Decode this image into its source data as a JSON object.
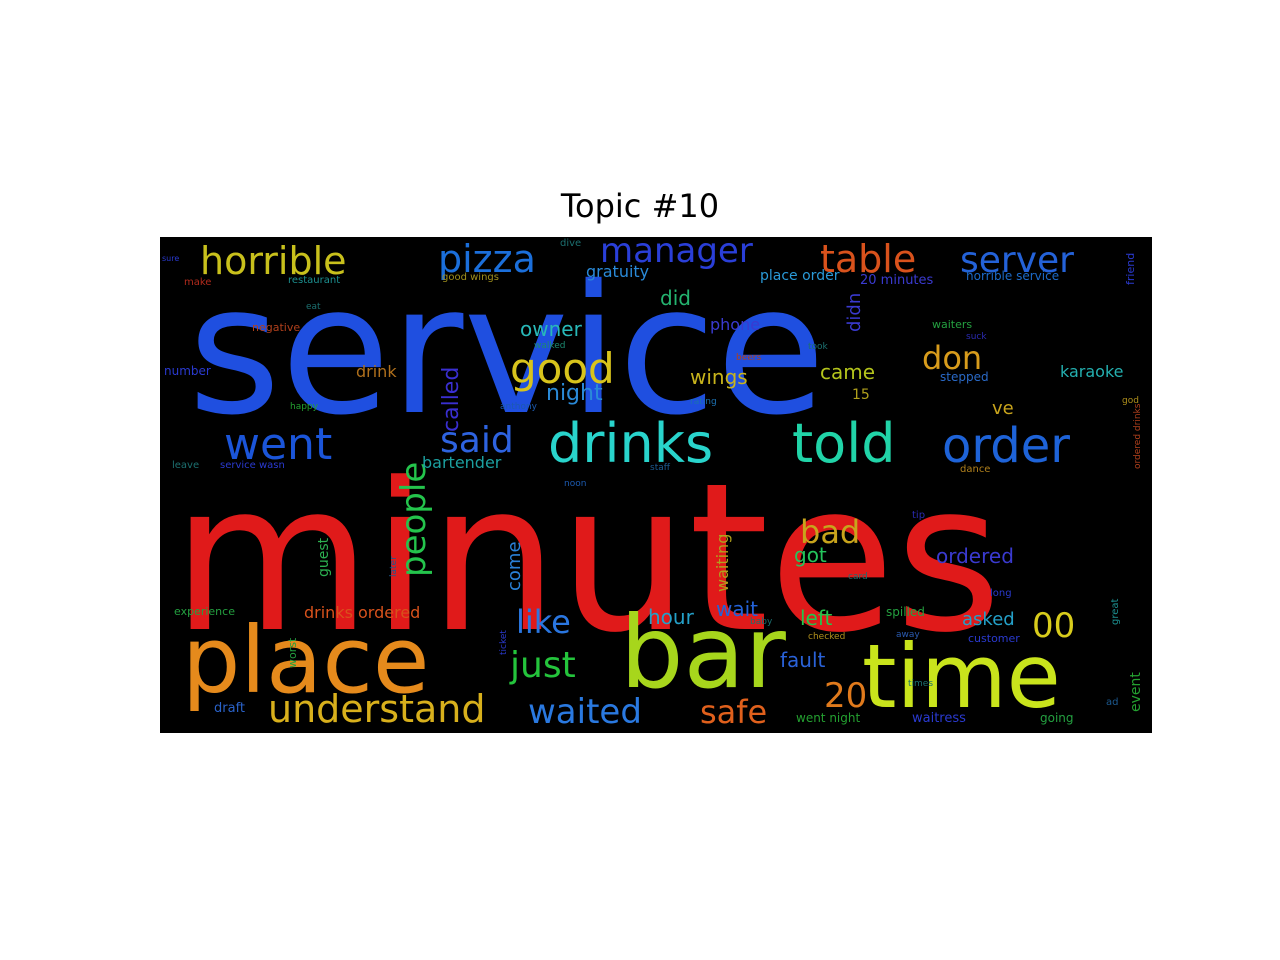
{
  "title": "Topic #10",
  "words": [
    {
      "text": "service",
      "color": "#1f4fe0"
    },
    {
      "text": "minutes",
      "color": "#e01a1a"
    },
    {
      "text": "place",
      "color": "#e58a1c"
    },
    {
      "text": "bar",
      "color": "#a7d61c"
    },
    {
      "text": "time",
      "color": "#c9e41c"
    },
    {
      "text": "drinks",
      "color": "#29d4cc"
    },
    {
      "text": "told",
      "color": "#21d4a8"
    },
    {
      "text": "order",
      "color": "#1e63d8"
    },
    {
      "text": "went",
      "color": "#1b55d9"
    },
    {
      "text": "said",
      "color": "#2e63e0"
    },
    {
      "text": "horrible",
      "color": "#c8c01c"
    },
    {
      "text": "pizza",
      "color": "#1b6fdb"
    },
    {
      "text": "manager",
      "color": "#2a3fd8"
    },
    {
      "text": "table",
      "color": "#d9521c"
    },
    {
      "text": "server",
      "color": "#2462d8"
    },
    {
      "text": "good",
      "color": "#d8c41c"
    },
    {
      "text": "understand",
      "color": "#d8b01c"
    },
    {
      "text": "people",
      "color": "#24c44c"
    },
    {
      "text": "just",
      "color": "#24c43c"
    },
    {
      "text": "like",
      "color": "#2a76e0"
    },
    {
      "text": "waited",
      "color": "#2a79e0"
    },
    {
      "text": "safe",
      "color": "#e0601c"
    },
    {
      "text": "don",
      "color": "#d89c1c"
    },
    {
      "text": "bad",
      "color": "#c8a41c"
    },
    {
      "text": "00",
      "color": "#d8cc1c"
    },
    {
      "text": "20",
      "color": "#e07a1c"
    },
    {
      "text": "called",
      "color": "#3a2fd0"
    },
    {
      "text": "night",
      "color": "#2a8ad8"
    },
    {
      "text": "wings",
      "color": "#c8b41c"
    },
    {
      "text": "owner",
      "color": "#28b8b8"
    },
    {
      "text": "did",
      "color": "#24b470"
    },
    {
      "text": "came",
      "color": "#b4c41c"
    },
    {
      "text": "hour",
      "color": "#24a0c8"
    },
    {
      "text": "wait",
      "color": "#2462d8"
    },
    {
      "text": "left",
      "color": "#24c44c"
    },
    {
      "text": "asked",
      "color": "#24a0c8"
    },
    {
      "text": "fault",
      "color": "#2a62d8"
    },
    {
      "text": "ordered",
      "color": "#3a3ad0"
    },
    {
      "text": "got",
      "color": "#24c45c"
    },
    {
      "text": "come",
      "color": "#2a80d8"
    },
    {
      "text": "bartender",
      "color": "#1ca0a0"
    },
    {
      "text": "drinks ordered",
      "color": "#d8521c"
    },
    {
      "text": "drink",
      "color": "#b0701c"
    },
    {
      "text": "phone",
      "color": "#3a3ad0"
    },
    {
      "text": "gratuity",
      "color": "#2a8ad8"
    },
    {
      "text": "place order",
      "color": "#2a9ad8"
    },
    {
      "text": "horrible service",
      "color": "#1c6ac8"
    },
    {
      "text": "didn",
      "color": "#3a3ad0"
    },
    {
      "text": "ve",
      "color": "#c8a41c"
    },
    {
      "text": "karaoke",
      "color": "#24b0b0"
    },
    {
      "text": "waiting",
      "color": "#b0a01c"
    },
    {
      "text": "guest",
      "color": "#2cb050"
    },
    {
      "text": "event",
      "color": "#24a030"
    },
    {
      "text": "15",
      "color": "#b0a01c"
    },
    {
      "text": "20 minutes",
      "color": "#3a3ad0"
    },
    {
      "text": "spilled",
      "color": "#24a040"
    },
    {
      "text": "waitress",
      "color": "#2a3ad0"
    },
    {
      "text": "going",
      "color": "#24a040"
    },
    {
      "text": "draft",
      "color": "#2a62c8"
    },
    {
      "text": "went night",
      "color": "#24a030"
    },
    {
      "text": "experience",
      "color": "#24a040"
    },
    {
      "text": "number",
      "color": "#2a3ad0"
    },
    {
      "text": "negative",
      "color": "#b0401c"
    },
    {
      "text": "waiters",
      "color": "#24a040"
    },
    {
      "text": "stepped",
      "color": "#2a6ac8"
    },
    {
      "text": "friend",
      "color": "#2a3ad0"
    },
    {
      "text": "restaurant",
      "color": "#1c9090"
    },
    {
      "text": "good wings",
      "color": "#a0901c"
    },
    {
      "text": "dive",
      "color": "#1c7070"
    },
    {
      "text": "make",
      "color": "#b02a1c"
    },
    {
      "text": "eat",
      "color": "#1c7070"
    },
    {
      "text": "happy",
      "color": "#24a030"
    },
    {
      "text": "leave",
      "color": "#1c7070"
    },
    {
      "text": "service wasn",
      "color": "#2a3ad0"
    },
    {
      "text": "walked",
      "color": "#1c8a70"
    },
    {
      "text": "anthony",
      "color": "#1c5ab0"
    },
    {
      "text": "rating",
      "color": "#1c70b0"
    },
    {
      "text": "beers",
      "color": "#b0401c"
    },
    {
      "text": "took",
      "color": "#1c7070"
    },
    {
      "text": "suck",
      "color": "#2a2ab0"
    },
    {
      "text": "god",
      "color": "#b0901c"
    },
    {
      "text": "tip",
      "color": "#2a2ab0"
    },
    {
      "text": "dance",
      "color": "#b0801c"
    },
    {
      "text": "noon",
      "color": "#1c5ab0"
    },
    {
      "text": "staff",
      "color": "#1c5a90"
    },
    {
      "text": "card",
      "color": "#1c7070"
    },
    {
      "text": "long",
      "color": "#2a3ad0"
    },
    {
      "text": "later",
      "color": "#1c5a90"
    },
    {
      "text": "worst",
      "color": "#24a040"
    },
    {
      "text": "ticket",
      "color": "#2a3ad0"
    },
    {
      "text": "baby",
      "color": "#1c7070"
    },
    {
      "text": "checked",
      "color": "#b0901c"
    },
    {
      "text": "away",
      "color": "#2a5ab0"
    },
    {
      "text": "customer",
      "color": "#2a3ad0"
    },
    {
      "text": "great",
      "color": "#1c9090"
    },
    {
      "text": "times",
      "color": "#1c7070"
    },
    {
      "text": "ordered drinks",
      "color": "#b0401c"
    },
    {
      "text": "sure",
      "color": "#2a3ad0"
    },
    {
      "text": "ad",
      "color": "#1c5a90"
    }
  ]
}
